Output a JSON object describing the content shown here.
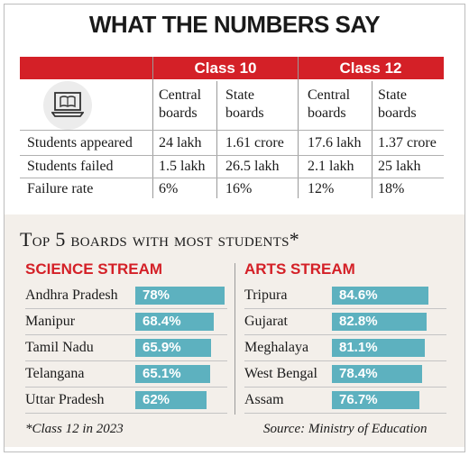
{
  "title": "WHAT THE NUMBERS SAY",
  "table": {
    "groups": [
      "Class 10",
      "Class 12"
    ],
    "subheaders": [
      [
        "Central",
        "boards"
      ],
      [
        "State",
        "boards"
      ],
      [
        "Central",
        "boards"
      ],
      [
        "State",
        "boards"
      ]
    ],
    "rows": [
      {
        "label": "Students appeared",
        "values": [
          "24 lakh",
          "1.61 crore",
          "17.6 lakh",
          "1.37 crore"
        ]
      },
      {
        "label": "Students failed",
        "values": [
          "1.5 lakh",
          "26.5 lakh",
          "2.1 lakh",
          "25 lakh"
        ]
      },
      {
        "label": "Failure rate",
        "values": [
          "6%",
          "16%",
          "12%",
          "18%"
        ]
      }
    ]
  },
  "top5_title": "Top 5 boards with most students*",
  "colors": {
    "accent": "#d42027",
    "bar": "#5db1bf",
    "panel": "#f3efea"
  },
  "icon": "laptop-book-icon",
  "chart_data": [
    {
      "type": "bar",
      "title": "SCIENCE STREAM",
      "categories": [
        "Andhra Pradesh",
        "Manipur",
        "Tamil Nadu",
        "Telangana",
        "Uttar Pradesh"
      ],
      "values": [
        78,
        68.4,
        65.9,
        65.1,
        62
      ],
      "labels": [
        "78%",
        "68.4%",
        "65.9%",
        "65.1%",
        "62%"
      ]
    },
    {
      "type": "bar",
      "title": "ARTS STREAM",
      "categories": [
        "Tripura",
        "Gujarat",
        "Meghalaya",
        "West Bengal",
        "Assam"
      ],
      "values": [
        84.6,
        82.8,
        81.1,
        78.4,
        76.7
      ],
      "labels": [
        "84.6%",
        "82.8%",
        "81.1%",
        "78.4%",
        "76.7%"
      ]
    }
  ],
  "footnote": "*Class 12 in 2023",
  "source": "Source: Ministry of Education"
}
